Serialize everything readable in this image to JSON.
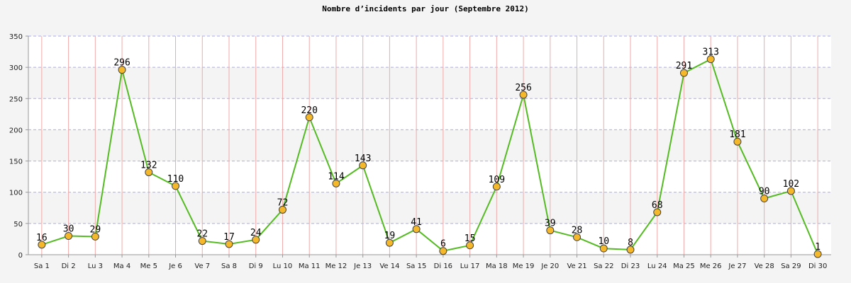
{
  "chart_data": {
    "type": "line",
    "title": "Nombre d’incidents par jour (Septembre 2012)",
    "categories": [
      "Sa 1",
      "Di 2",
      "Lu 3",
      "Ma 4",
      "Me 5",
      "Je 6",
      "Ve 7",
      "Sa 8",
      "Di 9",
      "Lu 10",
      "Ma 11",
      "Me 12",
      "Je 13",
      "Ve 14",
      "Sa 15",
      "Di 16",
      "Lu 17",
      "Ma 18",
      "Me 19",
      "Je 20",
      "Ve 21",
      "Sa 22",
      "Di 23",
      "Lu 24",
      "Ma 25",
      "Me 26",
      "Je 27",
      "Ve 28",
      "Sa 29",
      "Di 30"
    ],
    "values": [
      16,
      30,
      29,
      296,
      132,
      110,
      22,
      17,
      24,
      72,
      220,
      114,
      143,
      19,
      41,
      6,
      15,
      109,
      256,
      39,
      28,
      10,
      8,
      68,
      291,
      313,
      181,
      90,
      102,
      1
    ],
    "ylim": [
      0,
      350
    ],
    "yticks": [
      0,
      50,
      100,
      150,
      200,
      250,
      300,
      350
    ],
    "grid": true,
    "legend": "none",
    "colors": {
      "line": "#55bb22",
      "marker_fill": "#f5b82a",
      "marker_stroke": "#444444",
      "vertical_grid": "#f0aaaa",
      "horizontal_grid": "#aaaaee",
      "axis": "#999999",
      "band_light": "#ffffff",
      "band_dark": "#f4f4f4"
    }
  }
}
